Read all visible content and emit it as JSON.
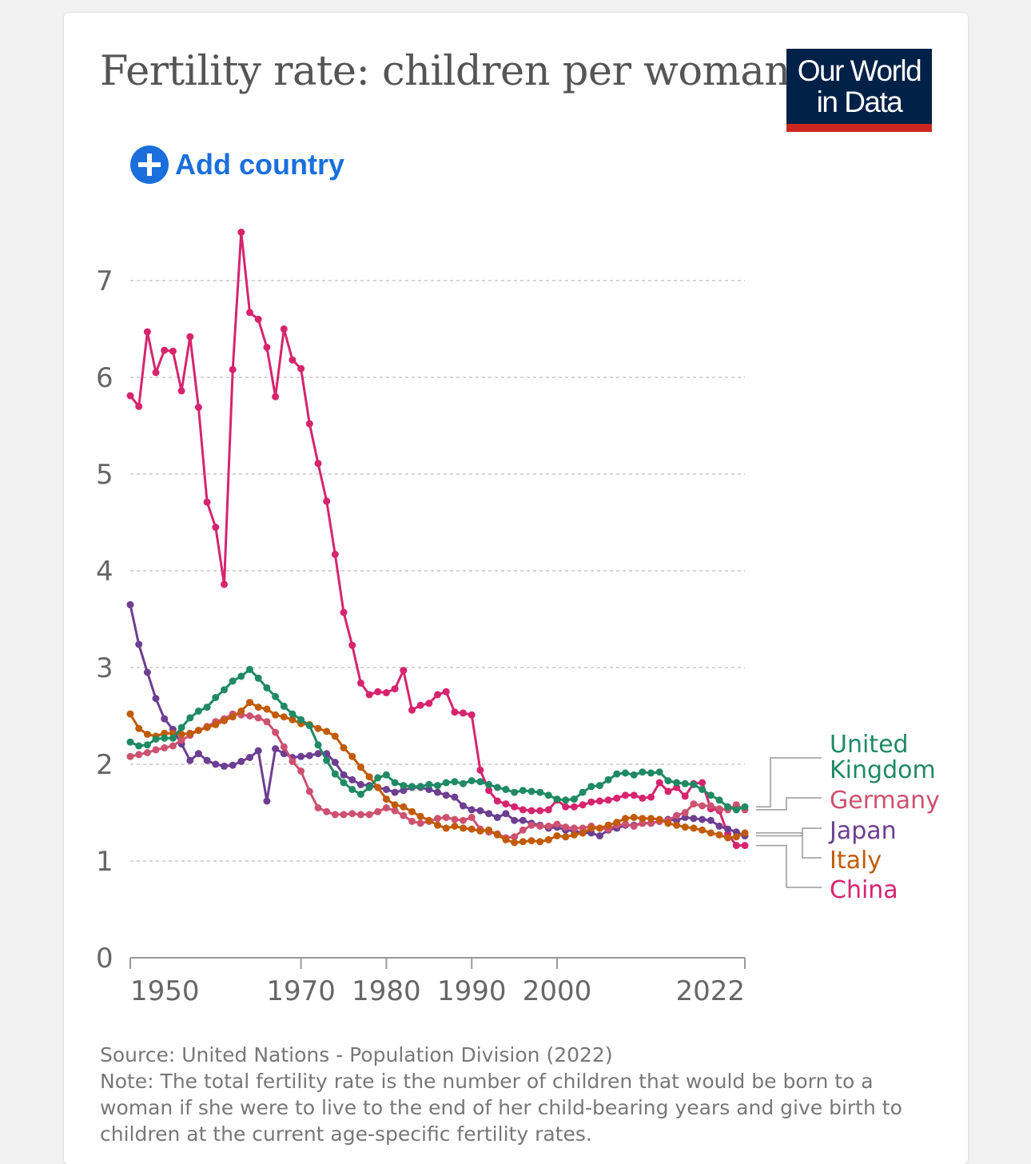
{
  "header": {
    "title": "Fertility rate: children per woman",
    "logo_line1": "Our World",
    "logo_line2": "in Data"
  },
  "controls": {
    "add_country_label": "Add country"
  },
  "footer": {
    "source": "Source: United Nations - Population Division (2022)",
    "note": "Note: The total fertility rate is the number of children that would be born to a woman if she were to live to the end of her child-bearing years and give birth to children at the current age-specific fertility rates."
  },
  "colors": {
    "accent": "#1a6fdc",
    "logo_bg": "#002147",
    "logo_bar": "#ce261e"
  },
  "chart_data": {
    "type": "line",
    "title": "Fertility rate: children per woman",
    "xlim": [
      1950,
      2022
    ],
    "ylim": [
      0,
      7.5
    ],
    "x_ticks": [
      1950,
      1970,
      1980,
      1990,
      2000,
      2022
    ],
    "y_ticks": [
      0,
      1,
      2,
      3,
      4,
      5,
      6,
      7
    ],
    "grid": "horizontal-dashed",
    "legend": "right-side labels",
    "series": [
      {
        "name": "China",
        "color": "#d6246e",
        "years": [
          1950,
          1951,
          1952,
          1953,
          1954,
          1955,
          1956,
          1957,
          1958,
          1959,
          1960,
          1961,
          1962,
          1963,
          1964,
          1965,
          1966,
          1967,
          1968,
          1969,
          1970,
          1971,
          1972,
          1973,
          1974,
          1975,
          1976,
          1977,
          1978,
          1979,
          1980,
          1981,
          1982,
          1983,
          1984,
          1985,
          1986,
          1987,
          1988,
          1989,
          1990,
          1991,
          1992,
          1993,
          1994,
          1995,
          1996,
          1997,
          1998,
          1999,
          2000,
          2001,
          2002,
          2003,
          2004,
          2005,
          2006,
          2007,
          2008,
          2009,
          2010,
          2011,
          2012,
          2013,
          2014,
          2015,
          2016,
          2017,
          2018,
          2019,
          2020,
          2021,
          2022
        ],
        "values": [
          5.81,
          5.7,
          6.47,
          6.05,
          6.28,
          6.27,
          5.86,
          6.42,
          5.69,
          4.71,
          4.45,
          3.86,
          6.08,
          7.5,
          6.67,
          6.6,
          6.31,
          5.8,
          6.5,
          6.18,
          6.09,
          5.52,
          5.11,
          4.72,
          4.17,
          3.57,
          3.23,
          2.84,
          2.72,
          2.75,
          2.74,
          2.78,
          2.97,
          2.56,
          2.61,
          2.63,
          2.72,
          2.75,
          2.54,
          2.53,
          2.51,
          1.94,
          1.73,
          1.62,
          1.59,
          1.56,
          1.53,
          1.52,
          1.52,
          1.53,
          1.63,
          1.56,
          1.56,
          1.58,
          1.61,
          1.62,
          1.63,
          1.65,
          1.68,
          1.68,
          1.65,
          1.66,
          1.81,
          1.72,
          1.76,
          1.67,
          1.8,
          1.81,
          1.54,
          1.52,
          1.28,
          1.16,
          1.16
        ]
      },
      {
        "name": "United Kingdom",
        "color": "#1f8a63",
        "years": [
          1950,
          1951,
          1952,
          1953,
          1954,
          1955,
          1956,
          1957,
          1958,
          1959,
          1960,
          1961,
          1962,
          1963,
          1964,
          1965,
          1966,
          1967,
          1968,
          1969,
          1970,
          1971,
          1972,
          1973,
          1974,
          1975,
          1976,
          1977,
          1978,
          1979,
          1980,
          1981,
          1982,
          1983,
          1984,
          1985,
          1986,
          1987,
          1988,
          1989,
          1990,
          1991,
          1992,
          1993,
          1994,
          1995,
          1996,
          1997,
          1998,
          1999,
          2000,
          2001,
          2002,
          2003,
          2004,
          2005,
          2006,
          2007,
          2008,
          2009,
          2010,
          2011,
          2012,
          2013,
          2014,
          2015,
          2016,
          2017,
          2018,
          2019,
          2020,
          2021,
          2022
        ],
        "values": [
          2.23,
          2.19,
          2.2,
          2.26,
          2.27,
          2.27,
          2.38,
          2.48,
          2.55,
          2.59,
          2.69,
          2.77,
          2.86,
          2.91,
          2.98,
          2.89,
          2.79,
          2.7,
          2.6,
          2.52,
          2.46,
          2.4,
          2.2,
          2.04,
          1.9,
          1.81,
          1.74,
          1.69,
          1.76,
          1.86,
          1.89,
          1.81,
          1.78,
          1.77,
          1.77,
          1.79,
          1.78,
          1.81,
          1.82,
          1.8,
          1.83,
          1.82,
          1.79,
          1.76,
          1.74,
          1.71,
          1.73,
          1.72,
          1.71,
          1.68,
          1.64,
          1.63,
          1.64,
          1.71,
          1.77,
          1.78,
          1.84,
          1.9,
          1.91,
          1.89,
          1.92,
          1.91,
          1.92,
          1.83,
          1.81,
          1.8,
          1.79,
          1.74,
          1.68,
          1.63,
          1.56,
          1.53,
          1.56
        ]
      },
      {
        "name": "Germany",
        "color": "#cd5170",
        "years": [
          1950,
          1951,
          1952,
          1953,
          1954,
          1955,
          1956,
          1957,
          1958,
          1959,
          1960,
          1961,
          1962,
          1963,
          1964,
          1965,
          1966,
          1967,
          1968,
          1969,
          1970,
          1971,
          1972,
          1973,
          1974,
          1975,
          1976,
          1977,
          1978,
          1979,
          1980,
          1981,
          1982,
          1983,
          1984,
          1985,
          1986,
          1987,
          1988,
          1989,
          1990,
          1991,
          1992,
          1993,
          1994,
          1995,
          1996,
          1997,
          1998,
          1999,
          2000,
          2001,
          2002,
          2003,
          2004,
          2005,
          2006,
          2007,
          2008,
          2009,
          2010,
          2011,
          2012,
          2013,
          2014,
          2015,
          2016,
          2017,
          2018,
          2019,
          2020,
          2021,
          2022
        ],
        "values": [
          2.08,
          2.1,
          2.12,
          2.15,
          2.17,
          2.19,
          2.25,
          2.3,
          2.35,
          2.39,
          2.44,
          2.47,
          2.52,
          2.51,
          2.5,
          2.48,
          2.44,
          2.33,
          2.18,
          2.03,
          1.93,
          1.72,
          1.55,
          1.51,
          1.48,
          1.48,
          1.49,
          1.48,
          1.48,
          1.51,
          1.55,
          1.52,
          1.47,
          1.41,
          1.39,
          1.41,
          1.44,
          1.45,
          1.43,
          1.42,
          1.45,
          1.33,
          1.3,
          1.28,
          1.24,
          1.25,
          1.32,
          1.37,
          1.36,
          1.36,
          1.38,
          1.35,
          1.34,
          1.34,
          1.36,
          1.34,
          1.33,
          1.37,
          1.38,
          1.36,
          1.39,
          1.39,
          1.41,
          1.42,
          1.47,
          1.5,
          1.59,
          1.57,
          1.57,
          1.54,
          1.53,
          1.58,
          1.53
        ]
      },
      {
        "name": "Japan",
        "color": "#6d3e91",
        "years": [
          1950,
          1951,
          1952,
          1953,
          1954,
          1955,
          1956,
          1957,
          1958,
          1959,
          1960,
          1961,
          1962,
          1963,
          1964,
          1965,
          1966,
          1967,
          1968,
          1969,
          1970,
          1971,
          1972,
          1973,
          1974,
          1975,
          1976,
          1977,
          1978,
          1979,
          1980,
          1981,
          1982,
          1983,
          1984,
          1985,
          1986,
          1987,
          1988,
          1989,
          1990,
          1991,
          1992,
          1993,
          1994,
          1995,
          1996,
          1997,
          1998,
          1999,
          2000,
          2001,
          2002,
          2003,
          2004,
          2005,
          2006,
          2007,
          2008,
          2009,
          2010,
          2011,
          2012,
          2013,
          2014,
          2015,
          2016,
          2017,
          2018,
          2019,
          2020,
          2021,
          2022
        ],
        "values": [
          3.65,
          3.24,
          2.95,
          2.68,
          2.47,
          2.36,
          2.21,
          2.04,
          2.11,
          2.04,
          2.0,
          1.98,
          1.99,
          2.03,
          2.07,
          2.14,
          1.62,
          2.16,
          2.11,
          2.07,
          2.08,
          2.09,
          2.11,
          2.11,
          2.02,
          1.89,
          1.84,
          1.79,
          1.78,
          1.76,
          1.74,
          1.71,
          1.73,
          1.76,
          1.76,
          1.74,
          1.71,
          1.68,
          1.66,
          1.57,
          1.53,
          1.52,
          1.49,
          1.45,
          1.49,
          1.42,
          1.42,
          1.39,
          1.37,
          1.34,
          1.35,
          1.32,
          1.31,
          1.29,
          1.29,
          1.26,
          1.32,
          1.34,
          1.37,
          1.37,
          1.39,
          1.39,
          1.41,
          1.43,
          1.42,
          1.45,
          1.44,
          1.43,
          1.42,
          1.36,
          1.33,
          1.3,
          1.26
        ]
      },
      {
        "name": "Italy",
        "color": "#c15b07",
        "years": [
          1950,
          1951,
          1952,
          1953,
          1954,
          1955,
          1956,
          1957,
          1958,
          1959,
          1960,
          1961,
          1962,
          1963,
          1964,
          1965,
          1966,
          1967,
          1968,
          1969,
          1970,
          1971,
          1972,
          1973,
          1974,
          1975,
          1976,
          1977,
          1978,
          1979,
          1980,
          1981,
          1982,
          1983,
          1984,
          1985,
          1986,
          1987,
          1988,
          1989,
          1990,
          1991,
          1992,
          1993,
          1994,
          1995,
          1996,
          1997,
          1998,
          1999,
          2000,
          2001,
          2002,
          2003,
          2004,
          2005,
          2006,
          2007,
          2008,
          2009,
          2010,
          2011,
          2012,
          2013,
          2014,
          2015,
          2016,
          2017,
          2018,
          2019,
          2020,
          2021,
          2022
        ],
        "values": [
          2.52,
          2.37,
          2.31,
          2.29,
          2.32,
          2.32,
          2.31,
          2.32,
          2.35,
          2.38,
          2.41,
          2.45,
          2.49,
          2.55,
          2.64,
          2.59,
          2.57,
          2.51,
          2.49,
          2.46,
          2.42,
          2.41,
          2.37,
          2.34,
          2.29,
          2.17,
          2.08,
          1.97,
          1.87,
          1.76,
          1.64,
          1.58,
          1.56,
          1.51,
          1.46,
          1.42,
          1.37,
          1.34,
          1.36,
          1.34,
          1.33,
          1.31,
          1.32,
          1.27,
          1.22,
          1.19,
          1.2,
          1.21,
          1.2,
          1.22,
          1.26,
          1.25,
          1.27,
          1.29,
          1.34,
          1.34,
          1.37,
          1.4,
          1.44,
          1.45,
          1.44,
          1.44,
          1.43,
          1.39,
          1.37,
          1.35,
          1.34,
          1.32,
          1.29,
          1.27,
          1.24,
          1.25,
          1.29
        ]
      }
    ],
    "legend_order": [
      "United Kingdom",
      "Germany",
      "Japan",
      "Italy",
      "China"
    ]
  }
}
